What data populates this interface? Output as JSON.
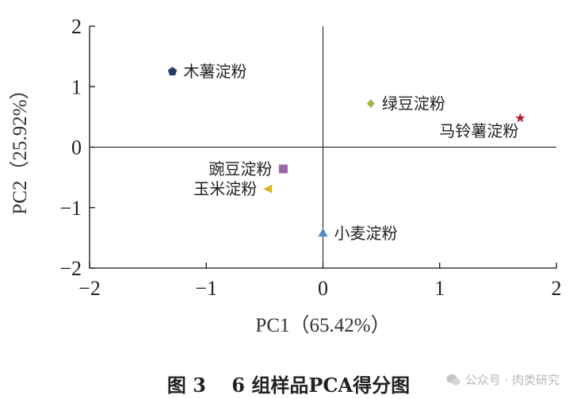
{
  "chart_data": {
    "type": "scatter",
    "xlabel": "PC1（65.42%）",
    "ylabel": "PC2（25.92%）",
    "xlim": [
      -2,
      2
    ],
    "ylim": [
      -2,
      2
    ],
    "xticks": [
      -2,
      -1,
      0,
      1,
      2
    ],
    "yticks": [
      -2,
      -1,
      0,
      1,
      2
    ],
    "xtick_labels": [
      "−2",
      "−1",
      "0",
      "1",
      "2"
    ],
    "ytick_labels": [
      "−2",
      "−1",
      "0",
      "1",
      "2"
    ],
    "points": [
      {
        "label": "木薯淀粉",
        "x": -1.29,
        "y": 1.25,
        "marker": "pentagon",
        "color": "#2b3a67",
        "label_side": "right"
      },
      {
        "label": "绿豆淀粉",
        "x": 0.41,
        "y": 0.72,
        "marker": "diamond",
        "color": "#9bbb45",
        "label_side": "right"
      },
      {
        "label": "马铃薯淀粉",
        "x": 1.69,
        "y": 0.48,
        "marker": "star",
        "color": "#b22234",
        "label_side": "left-below"
      },
      {
        "label": "豌豆淀粉",
        "x": -0.34,
        "y": -0.36,
        "marker": "square",
        "color": "#9b66a8",
        "label_side": "left"
      },
      {
        "label": "玉米淀粉",
        "x": -0.47,
        "y": -0.69,
        "marker": "triangle-left",
        "color": "#e2b520",
        "label_side": "left"
      },
      {
        "label": "小麦淀粉",
        "x": 0.0,
        "y": -1.42,
        "marker": "triangle-up",
        "color": "#4d8fcb",
        "label_side": "right"
      }
    ]
  },
  "caption": "图 3　 6 组样品PCA得分图",
  "watermark": "公众号 · 肉类研究"
}
